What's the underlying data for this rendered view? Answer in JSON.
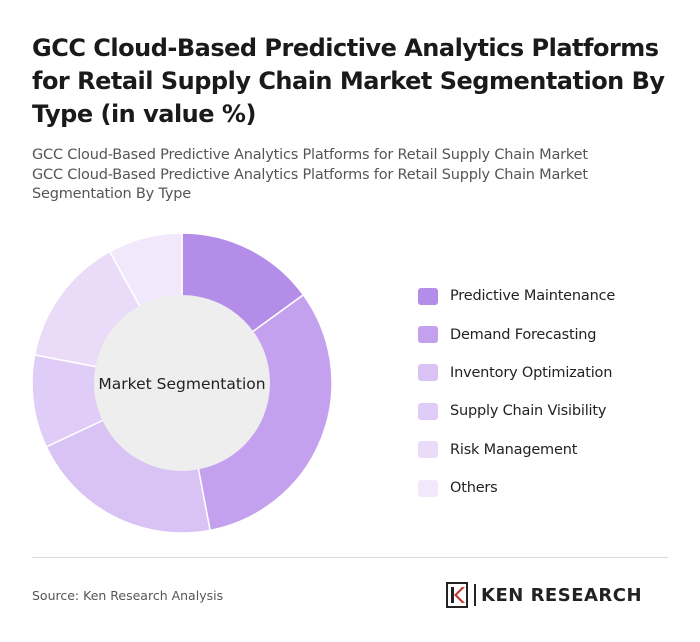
{
  "header": {
    "title": "GCC Cloud-Based Predictive Analytics Platforms for Retail Supply Chain Market Segmentation By Type (in value %)",
    "subtitle_line1": "GCC Cloud-Based Predictive Analytics Platforms for Retail Supply Chain Market",
    "subtitle_line2": "GCC Cloud-Based Predictive Analytics Platforms for Retail Supply Chain Market Segmentation By Type"
  },
  "chart_data": {
    "type": "pie",
    "variant": "donut",
    "center_label": "Market Segmentation",
    "categories": [
      "Predictive Maintenance",
      "Demand Forecasting",
      "Inventory Optimization",
      "Supply Chain Visibility",
      "Risk Management",
      "Others"
    ],
    "values": [
      15,
      32,
      21,
      10,
      14,
      8
    ],
    "colors": [
      "#b48de8",
      "#c4a1ef",
      "#d9c3f5",
      "#e0cdf7",
      "#eadcf9",
      "#f1e9fb"
    ],
    "legend_position": "right"
  },
  "footer": {
    "source": "Source: Ken Research Analysis",
    "logo_text": "KEN RESEARCH"
  }
}
